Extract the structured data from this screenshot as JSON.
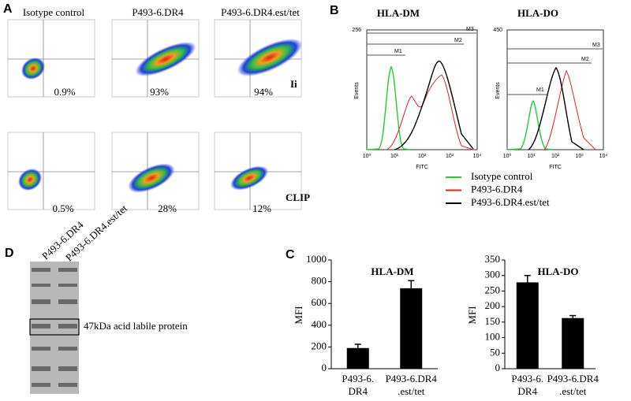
{
  "panel_a": {
    "label": "A",
    "columns": [
      "Isotype control",
      "P493-6.DR4",
      "P493-6.DR4.est/tet"
    ],
    "rows": [
      {
        "name": "Ii",
        "percents": [
          "0.9%",
          "93%",
          "94%"
        ]
      },
      {
        "name": "CLIP",
        "percents": [
          "0.5%",
          "28%",
          "12%"
        ]
      }
    ]
  },
  "panel_b": {
    "label": "B",
    "plots": [
      {
        "title": "HLA-DM",
        "y_max_label": "256"
      },
      {
        "title": "HLA-DO",
        "y_max_label": "450"
      }
    ],
    "y_axis_label": "Events",
    "x_axis_label": "FITC",
    "x_tick_labels": [
      "10⁰",
      "10¹",
      "10²",
      "10³",
      "10⁴"
    ],
    "markers": [
      "M1",
      "M2",
      "M3"
    ],
    "legend": [
      {
        "name": "Isotype control",
        "color": "#22cc33"
      },
      {
        "name": "P493-6.DR4",
        "color": "#e02020"
      },
      {
        "name": "P493-6.DR4.est/tet",
        "color": "#000000"
      }
    ]
  },
  "panel_c": {
    "label": "C"
  },
  "panel_d": {
    "label": "D",
    "lanes": [
      "P493-6.DR4",
      "P493-6.DR4.est/tet"
    ],
    "annotation": "47kDa acid labile  protein"
  },
  "chart_data": [
    {
      "type": "bar",
      "title": "HLA-DM",
      "ylabel": "MFI",
      "categories": [
        [
          "P493-6.",
          "DR4"
        ],
        [
          "P493-6.DR4",
          ".est/tet"
        ]
      ],
      "values": [
        190,
        740
      ],
      "errors": [
        35,
        70
      ],
      "color": "#000000",
      "ylim": [
        0,
        1000
      ],
      "yticks": [
        0,
        200,
        400,
        600,
        800,
        1000
      ]
    },
    {
      "type": "bar",
      "title": "HLA-DO",
      "ylabel": "MFI",
      "categories": [
        [
          "P493-6.",
          "DR4"
        ],
        [
          "P493-6.DR4",
          ".est/tet"
        ]
      ],
      "values": [
        278,
        163
      ],
      "errors": [
        22,
        8
      ],
      "color": "#000000",
      "ylim": [
        0,
        350
      ],
      "yticks": [
        0,
        50,
        100,
        150,
        200,
        250,
        300,
        350
      ]
    }
  ]
}
